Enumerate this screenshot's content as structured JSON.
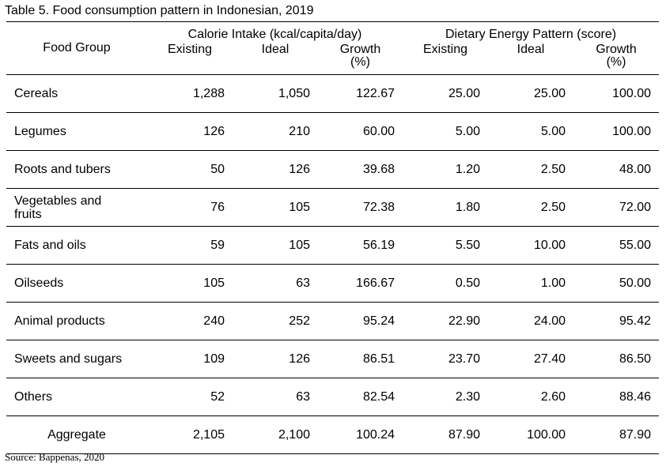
{
  "title": "Table 5. Food consumption pattern in Indonesian, 2019",
  "source": "Source: Bappenas, 2020",
  "header": {
    "food_group": "Food Group",
    "calorie_group": "Calorie Intake (kcal/capita/day)",
    "energy_group": "Dietary Energy Pattern (score)",
    "existing": "Existing",
    "ideal": "Ideal",
    "growth": "Growth",
    "growth_unit": "(%)"
  },
  "rows": [
    {
      "name": "Cereals",
      "cal_existing": "1,288",
      "cal_ideal": "1,050",
      "cal_growth": "122.67",
      "en_existing": "25.00",
      "en_ideal": "25.00",
      "en_growth": "100.00"
    },
    {
      "name": "Legumes",
      "cal_existing": "126",
      "cal_ideal": "210",
      "cal_growth": "60.00",
      "en_existing": "5.00",
      "en_ideal": "5.00",
      "en_growth": "100.00"
    },
    {
      "name": "Roots and tubers",
      "cal_existing": "50",
      "cal_ideal": "126",
      "cal_growth": "39.68",
      "en_existing": "1.20",
      "en_ideal": "2.50",
      "en_growth": "48.00"
    },
    {
      "name": "Vegetables and fruits",
      "cal_existing": "76",
      "cal_ideal": "105",
      "cal_growth": "72.38",
      "en_existing": "1.80",
      "en_ideal": "2.50",
      "en_growth": "72.00"
    },
    {
      "name": "Fats and oils",
      "cal_existing": "59",
      "cal_ideal": "105",
      "cal_growth": "56.19",
      "en_existing": "5.50",
      "en_ideal": "10.00",
      "en_growth": "55.00"
    },
    {
      "name": "Oilseeds",
      "cal_existing": "105",
      "cal_ideal": "63",
      "cal_growth": "166.67",
      "en_existing": "0.50",
      "en_ideal": "1.00",
      "en_growth": "50.00"
    },
    {
      "name": "Animal products",
      "cal_existing": "240",
      "cal_ideal": "252",
      "cal_growth": "95.24",
      "en_existing": "22.90",
      "en_ideal": "24.00",
      "en_growth": "95.42"
    },
    {
      "name": "Sweets and sugars",
      "cal_existing": "109",
      "cal_ideal": "126",
      "cal_growth": "86.51",
      "en_existing": "23.70",
      "en_ideal": "27.40",
      "en_growth": "86.50"
    },
    {
      "name": "Others",
      "cal_existing": "52",
      "cal_ideal": "63",
      "cal_growth": "82.54",
      "en_existing": "2.30",
      "en_ideal": "2.60",
      "en_growth": "88.46"
    }
  ],
  "aggregate": {
    "name": "Aggregate",
    "cal_existing": "2,105",
    "cal_ideal": "2,100",
    "cal_growth": "100.24",
    "en_existing": "87.90",
    "en_ideal": "100.00",
    "en_growth": "87.90"
  }
}
